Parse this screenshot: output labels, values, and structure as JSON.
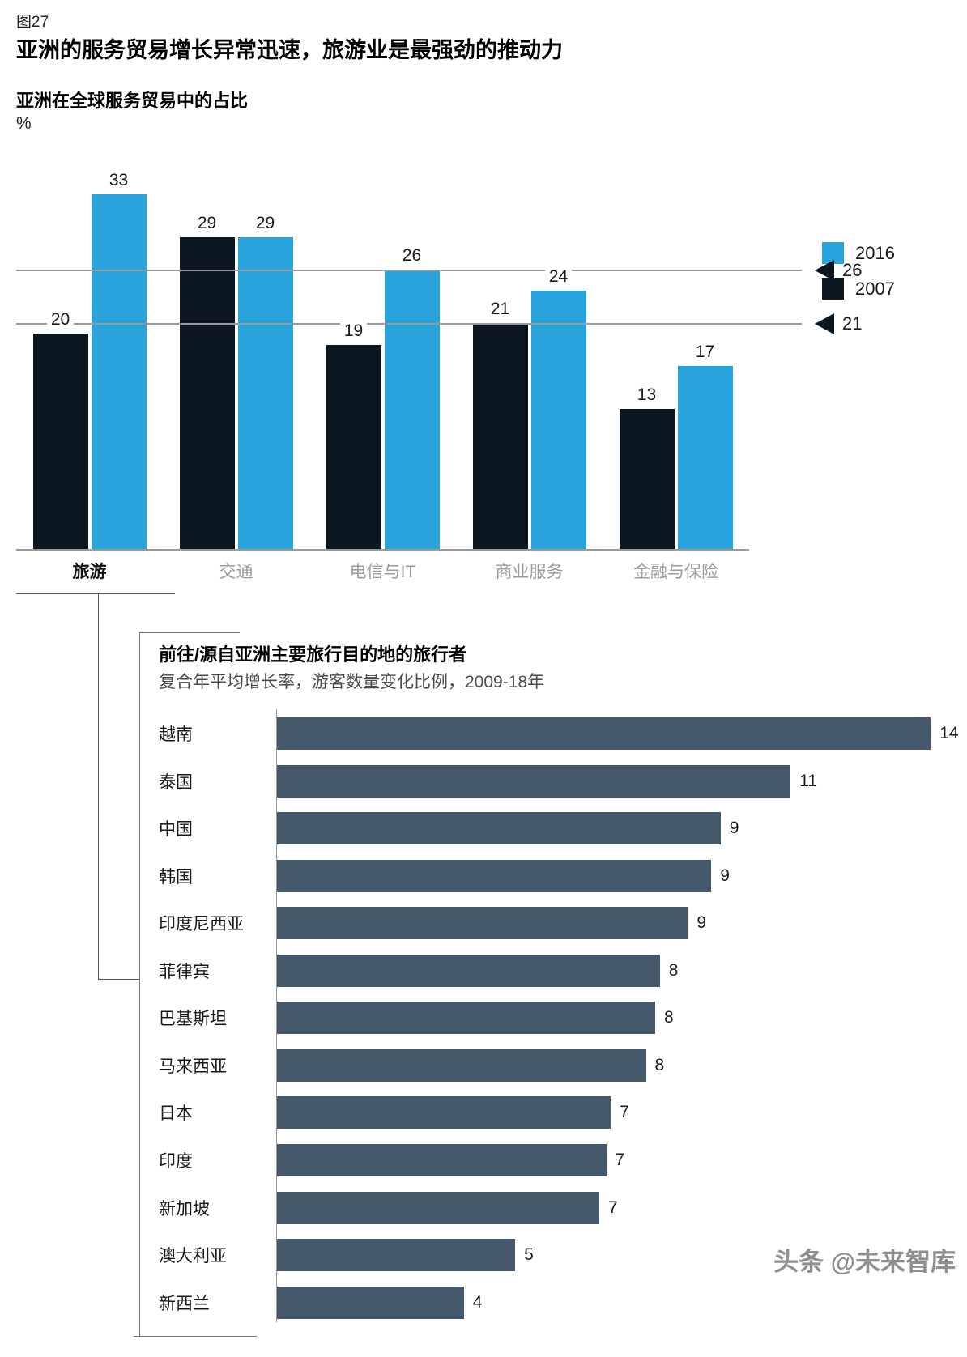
{
  "figure_label": "图27",
  "title": "亚洲的服务贸易增长异常迅速，旅游业是最强劲的推动力",
  "watermark": "头条 @未来智库",
  "chart_data": [
    {
      "type": "bar",
      "title": "亚洲在全球服务贸易中的占比",
      "ylabel": "%",
      "categories": [
        "旅游",
        "交通",
        "电信与IT",
        "商业服务",
        "金融与保险"
      ],
      "highlight_category": "旅游",
      "series": [
        {
          "name": "2007",
          "color": "#0c1722",
          "values": [
            20,
            29,
            19,
            21,
            13
          ]
        },
        {
          "name": "2016",
          "color": "#29a3dc",
          "values": [
            33,
            29,
            26,
            24,
            17
          ]
        }
      ],
      "legend": [
        {
          "label": "2016",
          "color": "#29a3dc"
        },
        {
          "label": "2007",
          "color": "#0c1722"
        }
      ],
      "legend_position": "top-right",
      "reference_lines": [
        26,
        21
      ],
      "ylim": [
        0,
        35.6
      ],
      "grid": false
    },
    {
      "type": "bar",
      "orientation": "horizontal",
      "title": "前往/源自亚洲主要旅行目的地的旅行者",
      "subtitle": "复合年平均增长率，游客数量变化比例，2009-18年",
      "categories": [
        "越南",
        "泰国",
        "中国",
        "韩国",
        "印度尼西亚",
        "菲律宾",
        "巴基斯坦",
        "马来西亚",
        "日本",
        "印度",
        "新加坡",
        "澳大利亚",
        "新西兰"
      ],
      "values": [
        14,
        11,
        9,
        9,
        9,
        8,
        8,
        8,
        7,
        7,
        7,
        5,
        4
      ],
      "bar_lengths_precise": [
        14,
        11,
        9.5,
        9.3,
        8.8,
        8.2,
        8.1,
        7.9,
        7.15,
        7.05,
        6.9,
        5.1,
        4.0
      ],
      "bar_color": "#46586b",
      "xlim": [
        0,
        14.1
      ],
      "grid": false
    }
  ]
}
